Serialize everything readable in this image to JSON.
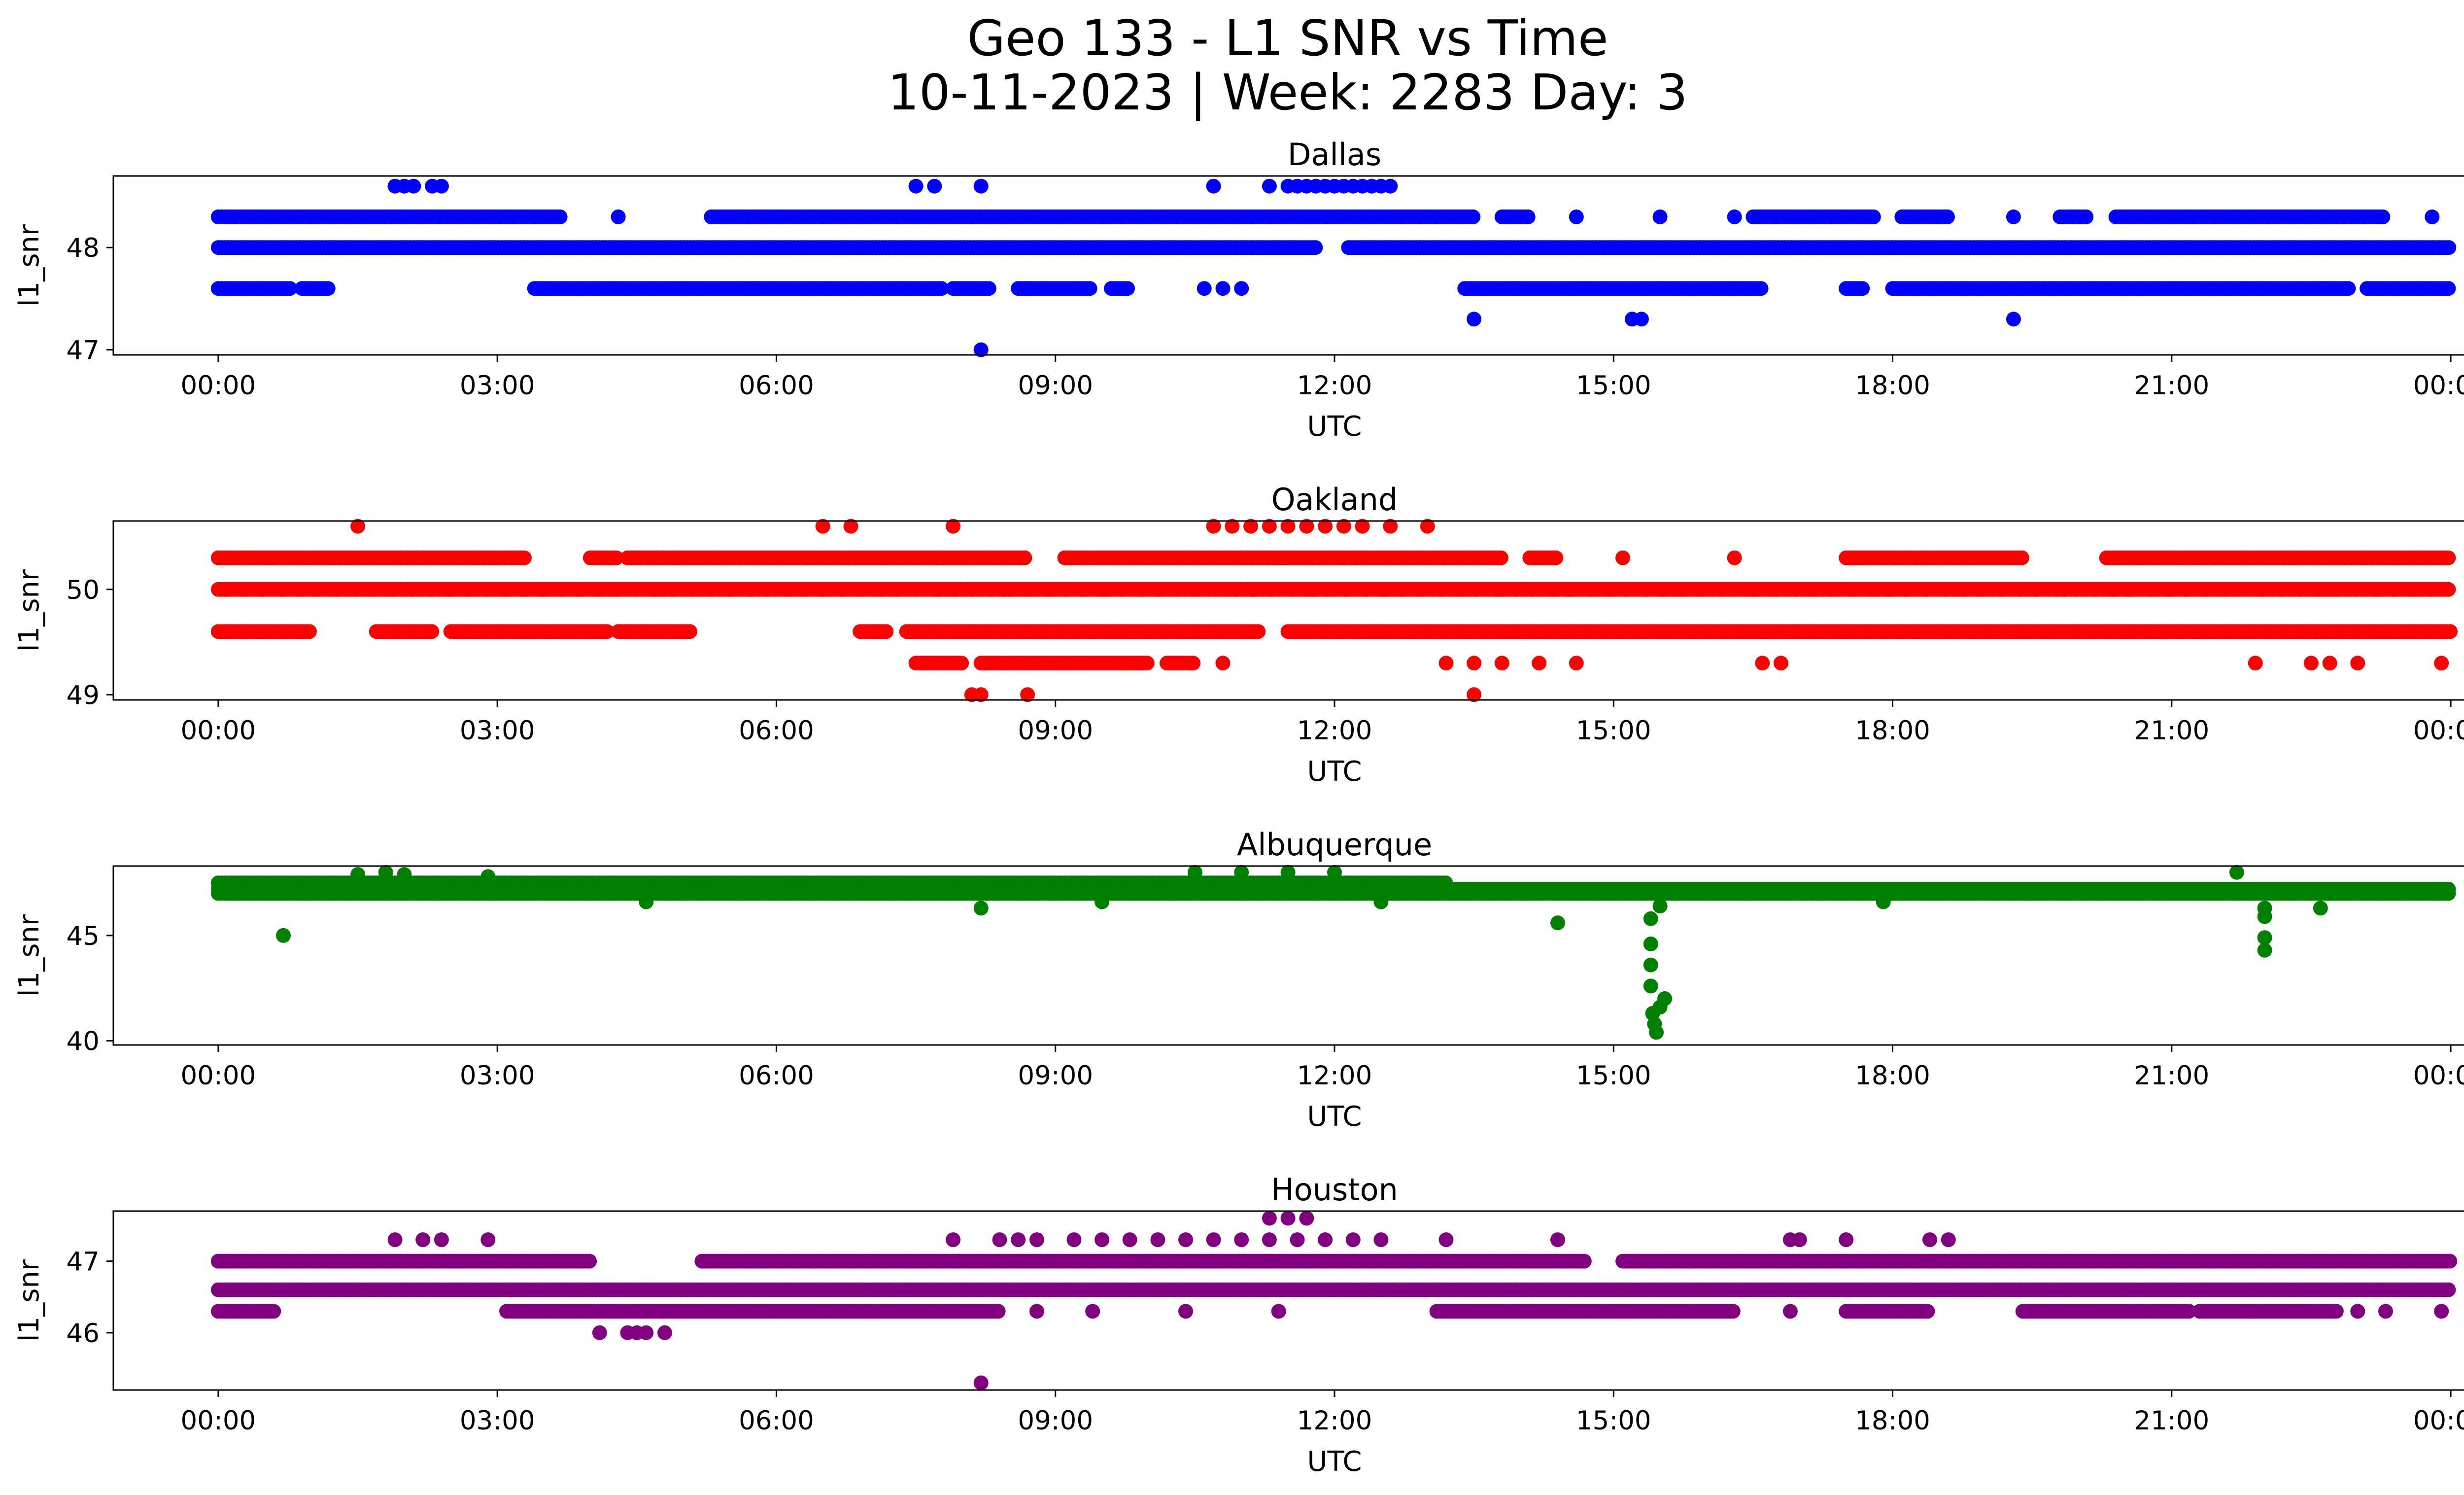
{
  "figure": {
    "title_line1": "Geo 133 - L1 SNR vs Time",
    "title_line2": "10-11-2023 | Week: 2283 Day: 3"
  },
  "chart_data": [
    {
      "type": "scatter",
      "title": "Dallas",
      "xlabel": "UTC",
      "ylabel": "l1_snr",
      "color": "#0000ff",
      "xlim": [
        "00:00",
        "24:00"
      ],
      "ylim": [
        46.95,
        48.7
      ],
      "xticks": [
        "00:00",
        "03:00",
        "06:00",
        "09:00",
        "12:00",
        "15:00",
        "18:00",
        "21:00",
        "00:00"
      ],
      "yticks": [
        47,
        48
      ],
      "ytick_labels": [
        "47",
        "48"
      ],
      "bands": [
        {
          "y": 48.0,
          "segments": [
            [
              0.0,
              11.8
            ],
            [
              12.15,
              24.0
            ]
          ]
        },
        {
          "y": 48.3,
          "segments": [
            [
              0.0,
              3.7
            ],
            [
              5.3,
              13.5
            ],
            [
              13.8,
              14.1
            ],
            [
              16.5,
              17.8
            ],
            [
              18.1,
              18.6
            ],
            [
              19.8,
              20.1
            ],
            [
              20.4,
              23.3
            ]
          ]
        },
        {
          "y": 47.6,
          "segments": [
            [
              0.0,
              0.8
            ],
            [
              0.9,
              1.2
            ],
            [
              3.4,
              7.8
            ],
            [
              7.9,
              8.3
            ],
            [
              8.6,
              9.4
            ],
            [
              9.6,
              9.8
            ],
            [
              13.4,
              16.6
            ],
            [
              17.5,
              17.7
            ],
            [
              18.0,
              22.9
            ],
            [
              23.1,
              24.0
            ]
          ]
        }
      ],
      "points": [
        {
          "x": 1.9,
          "y": 48.6
        },
        {
          "x": 2.0,
          "y": 48.6
        },
        {
          "x": 2.1,
          "y": 48.6
        },
        {
          "x": 2.3,
          "y": 48.6
        },
        {
          "x": 2.4,
          "y": 48.6
        },
        {
          "x": 7.5,
          "y": 48.6
        },
        {
          "x": 7.7,
          "y": 48.6
        },
        {
          "x": 8.2,
          "y": 48.6
        },
        {
          "x": 10.7,
          "y": 48.6
        },
        {
          "x": 11.3,
          "y": 48.6
        },
        {
          "x": 11.5,
          "y": 48.6
        },
        {
          "x": 11.6,
          "y": 48.6
        },
        {
          "x": 11.7,
          "y": 48.6
        },
        {
          "x": 11.8,
          "y": 48.6
        },
        {
          "x": 11.9,
          "y": 48.6
        },
        {
          "x": 12.0,
          "y": 48.6
        },
        {
          "x": 12.1,
          "y": 48.6
        },
        {
          "x": 12.2,
          "y": 48.6
        },
        {
          "x": 12.3,
          "y": 48.6
        },
        {
          "x": 12.4,
          "y": 48.6
        },
        {
          "x": 12.5,
          "y": 48.6
        },
        {
          "x": 12.6,
          "y": 48.6
        },
        {
          "x": 4.3,
          "y": 48.3
        },
        {
          "x": 14.6,
          "y": 48.3
        },
        {
          "x": 15.5,
          "y": 48.3
        },
        {
          "x": 16.3,
          "y": 48.3
        },
        {
          "x": 19.3,
          "y": 48.3
        },
        {
          "x": 23.8,
          "y": 48.3
        },
        {
          "x": 13.5,
          "y": 47.3
        },
        {
          "x": 15.2,
          "y": 47.3
        },
        {
          "x": 15.3,
          "y": 47.3
        },
        {
          "x": 19.3,
          "y": 47.3
        },
        {
          "x": 8.2,
          "y": 47.0
        },
        {
          "x": 10.6,
          "y": 47.6
        },
        {
          "x": 10.8,
          "y": 47.6
        },
        {
          "x": 11.0,
          "y": 47.6
        }
      ]
    },
    {
      "type": "scatter",
      "title": "Oakland",
      "xlabel": "UTC",
      "ylabel": "l1_snr",
      "color": "#ff0000",
      "xlim": [
        "00:00",
        "24:00"
      ],
      "ylim": [
        48.95,
        50.65
      ],
      "xticks": [
        "00:00",
        "03:00",
        "06:00",
        "09:00",
        "12:00",
        "15:00",
        "18:00",
        "21:00",
        "00:00"
      ],
      "yticks": [
        49,
        50
      ],
      "ytick_labels": [
        "49",
        "50"
      ],
      "bands": [
        {
          "y": 50.0,
          "segments": [
            [
              0.0,
              24.0
            ]
          ]
        },
        {
          "y": 50.3,
          "segments": [
            [
              0.0,
              3.3
            ],
            [
              4.0,
              4.3
            ],
            [
              4.4,
              8.7
            ],
            [
              9.1,
              13.8
            ],
            [
              14.1,
              14.4
            ],
            [
              17.5,
              19.4
            ],
            [
              20.3,
              24.0
            ]
          ]
        },
        {
          "y": 49.6,
          "segments": [
            [
              0.0,
              1.0
            ],
            [
              1.7,
              2.3
            ],
            [
              2.5,
              4.2
            ],
            [
              4.3,
              5.1
            ],
            [
              6.9,
              7.2
            ],
            [
              7.4,
              11.2
            ],
            [
              11.5,
              24.0
            ]
          ]
        },
        {
          "y": 49.3,
          "segments": [
            [
              7.5,
              8.0
            ],
            [
              8.2,
              10.0
            ],
            [
              10.2,
              10.5
            ]
          ]
        }
      ],
      "points": [
        {
          "x": 1.5,
          "y": 50.6
        },
        {
          "x": 6.5,
          "y": 50.6
        },
        {
          "x": 6.8,
          "y": 50.6
        },
        {
          "x": 7.9,
          "y": 50.6
        },
        {
          "x": 10.7,
          "y": 50.6
        },
        {
          "x": 10.9,
          "y": 50.6
        },
        {
          "x": 11.1,
          "y": 50.6
        },
        {
          "x": 11.3,
          "y": 50.6
        },
        {
          "x": 11.5,
          "y": 50.6
        },
        {
          "x": 11.7,
          "y": 50.6
        },
        {
          "x": 11.9,
          "y": 50.6
        },
        {
          "x": 12.1,
          "y": 50.6
        },
        {
          "x": 12.3,
          "y": 50.6
        },
        {
          "x": 12.6,
          "y": 50.6
        },
        {
          "x": 13.0,
          "y": 50.6
        },
        {
          "x": 15.1,
          "y": 50.3
        },
        {
          "x": 16.3,
          "y": 50.3
        },
        {
          "x": 10.8,
          "y": 49.3
        },
        {
          "x": 13.2,
          "y": 49.3
        },
        {
          "x": 13.5,
          "y": 49.3
        },
        {
          "x": 13.8,
          "y": 49.3
        },
        {
          "x": 14.2,
          "y": 49.3
        },
        {
          "x": 14.6,
          "y": 49.3
        },
        {
          "x": 16.6,
          "y": 49.3
        },
        {
          "x": 16.8,
          "y": 49.3
        },
        {
          "x": 21.9,
          "y": 49.3
        },
        {
          "x": 22.5,
          "y": 49.3
        },
        {
          "x": 22.7,
          "y": 49.3
        },
        {
          "x": 23.0,
          "y": 49.3
        },
        {
          "x": 23.9,
          "y": 49.3
        },
        {
          "x": 8.1,
          "y": 49.0
        },
        {
          "x": 8.2,
          "y": 49.0
        },
        {
          "x": 8.7,
          "y": 49.0
        },
        {
          "x": 13.5,
          "y": 49.0
        }
      ]
    },
    {
      "type": "scatter",
      "title": "Albuquerque",
      "xlabel": "UTC",
      "ylabel": "l1_snr",
      "color": "#008000",
      "xlim": [
        "00:00",
        "24:00"
      ],
      "ylim": [
        39.8,
        48.3
      ],
      "xticks": [
        "00:00",
        "03:00",
        "06:00",
        "09:00",
        "12:00",
        "15:00",
        "18:00",
        "21:00",
        "00:00"
      ],
      "yticks": [
        40,
        45
      ],
      "ytick_labels": [
        "40",
        "45"
      ],
      "bands": [
        {
          "y": 47.0,
          "segments": [
            [
              0.0,
              24.0
            ]
          ]
        },
        {
          "y": 47.5,
          "segments": [
            [
              0.0,
              13.2
            ]
          ]
        },
        {
          "y": 47.2,
          "segments": [
            [
              0.0,
              24.0
            ]
          ]
        }
      ],
      "points": [
        {
          "x": 0.7,
          "y": 45.0
        },
        {
          "x": 1.5,
          "y": 47.9
        },
        {
          "x": 1.8,
          "y": 48.0
        },
        {
          "x": 2.0,
          "y": 47.9
        },
        {
          "x": 2.9,
          "y": 47.8
        },
        {
          "x": 4.6,
          "y": 46.6
        },
        {
          "x": 8.2,
          "y": 46.3
        },
        {
          "x": 9.5,
          "y": 46.6
        },
        {
          "x": 10.5,
          "y": 48.0
        },
        {
          "x": 11.0,
          "y": 48.0
        },
        {
          "x": 11.5,
          "y": 48.0
        },
        {
          "x": 12.0,
          "y": 48.0
        },
        {
          "x": 12.5,
          "y": 46.6
        },
        {
          "x": 14.4,
          "y": 45.6
        },
        {
          "x": 15.4,
          "y": 45.8
        },
        {
          "x": 15.4,
          "y": 44.6
        },
        {
          "x": 15.4,
          "y": 43.6
        },
        {
          "x": 15.4,
          "y": 42.6
        },
        {
          "x": 15.42,
          "y": 41.3
        },
        {
          "x": 15.44,
          "y": 40.8
        },
        {
          "x": 15.46,
          "y": 40.4
        },
        {
          "x": 15.5,
          "y": 41.6
        },
        {
          "x": 15.55,
          "y": 42.0
        },
        {
          "x": 15.5,
          "y": 46.4
        },
        {
          "x": 17.9,
          "y": 46.6
        },
        {
          "x": 21.7,
          "y": 48.0
        },
        {
          "x": 22.0,
          "y": 46.3
        },
        {
          "x": 22.0,
          "y": 45.9
        },
        {
          "x": 22.0,
          "y": 44.9
        },
        {
          "x": 22.0,
          "y": 44.3
        },
        {
          "x": 22.6,
          "y": 46.3
        }
      ]
    },
    {
      "type": "scatter",
      "title": "Houston",
      "xlabel": "UTC",
      "ylabel": "l1_snr",
      "color": "#800080",
      "xlim": [
        "00:00",
        "24:00"
      ],
      "ylim": [
        45.2,
        47.7
      ],
      "xticks": [
        "00:00",
        "03:00",
        "06:00",
        "09:00",
        "12:00",
        "15:00",
        "18:00",
        "21:00",
        "00:00"
      ],
      "yticks": [
        46,
        47
      ],
      "ytick_labels": [
        "46",
        "47"
      ],
      "bands": [
        {
          "y": 46.6,
          "segments": [
            [
              0.0,
              24.0
            ]
          ]
        },
        {
          "y": 47.0,
          "segments": [
            [
              0.0,
              4.0
            ],
            [
              5.2,
              14.7
            ],
            [
              15.1,
              24.0
            ]
          ]
        },
        {
          "y": 46.3,
          "segments": [
            [
              0.0,
              0.6
            ],
            [
              3.1,
              8.4
            ],
            [
              13.1,
              16.3
            ],
            [
              17.5,
              18.4
            ],
            [
              19.4,
              21.2
            ],
            [
              21.3,
              22.8
            ]
          ]
        }
      ],
      "points": [
        {
          "x": 1.9,
          "y": 47.3
        },
        {
          "x": 2.2,
          "y": 47.3
        },
        {
          "x": 2.4,
          "y": 47.3
        },
        {
          "x": 2.9,
          "y": 47.3
        },
        {
          "x": 7.9,
          "y": 47.3
        },
        {
          "x": 8.4,
          "y": 47.3
        },
        {
          "x": 8.6,
          "y": 47.3
        },
        {
          "x": 8.8,
          "y": 47.3
        },
        {
          "x": 9.2,
          "y": 47.3
        },
        {
          "x": 9.5,
          "y": 47.3
        },
        {
          "x": 9.8,
          "y": 47.3
        },
        {
          "x": 10.1,
          "y": 47.3
        },
        {
          "x": 10.4,
          "y": 47.3
        },
        {
          "x": 10.7,
          "y": 47.3
        },
        {
          "x": 11.0,
          "y": 47.3
        },
        {
          "x": 11.3,
          "y": 47.3
        },
        {
          "x": 11.6,
          "y": 47.3
        },
        {
          "x": 11.9,
          "y": 47.3
        },
        {
          "x": 12.2,
          "y": 47.3
        },
        {
          "x": 12.5,
          "y": 47.3
        },
        {
          "x": 13.2,
          "y": 47.3
        },
        {
          "x": 14.4,
          "y": 47.3
        },
        {
          "x": 16.9,
          "y": 47.3
        },
        {
          "x": 17.0,
          "y": 47.3
        },
        {
          "x": 17.5,
          "y": 47.3
        },
        {
          "x": 18.4,
          "y": 47.3
        },
        {
          "x": 18.6,
          "y": 47.3
        },
        {
          "x": 11.3,
          "y": 47.6
        },
        {
          "x": 11.5,
          "y": 47.6
        },
        {
          "x": 11.7,
          "y": 47.6
        },
        {
          "x": 4.1,
          "y": 46.0
        },
        {
          "x": 4.4,
          "y": 46.0
        },
        {
          "x": 4.5,
          "y": 46.0
        },
        {
          "x": 4.6,
          "y": 46.0
        },
        {
          "x": 4.8,
          "y": 46.0
        },
        {
          "x": 8.2,
          "y": 45.3
        },
        {
          "x": 8.8,
          "y": 46.3
        },
        {
          "x": 9.4,
          "y": 46.3
        },
        {
          "x": 10.4,
          "y": 46.3
        },
        {
          "x": 11.4,
          "y": 46.3
        },
        {
          "x": 16.9,
          "y": 46.3
        },
        {
          "x": 23.0,
          "y": 46.3
        },
        {
          "x": 23.3,
          "y": 46.3
        },
        {
          "x": 23.9,
          "y": 46.3
        }
      ]
    }
  ]
}
